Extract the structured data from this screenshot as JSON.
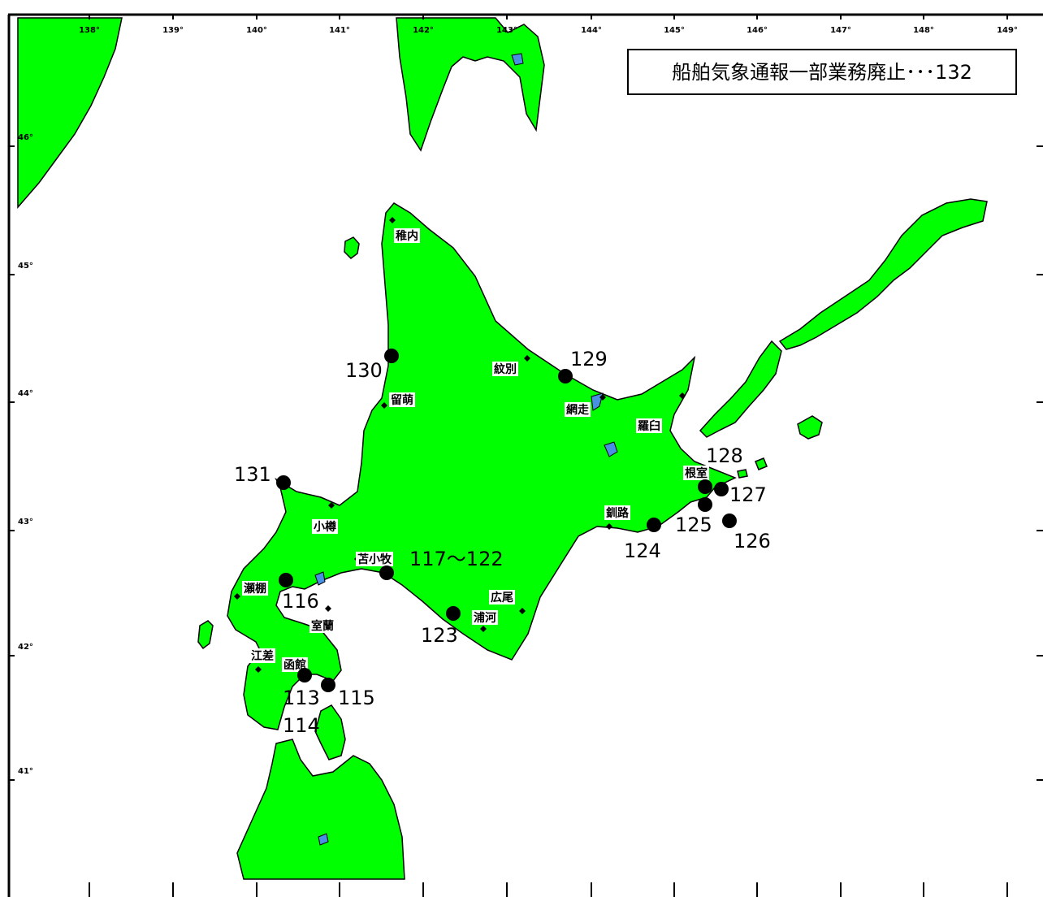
{
  "title": "船舶気象通報一部業務廃止･･･132",
  "colors": {
    "land": "#00FF00",
    "lake": "#4A90E2",
    "sea": "#FFFFFF",
    "marker": "#000000"
  },
  "longitude_labels": [
    "138°",
    "139°",
    "140°",
    "141°",
    "142°",
    "143°",
    "144°",
    "145°",
    "146°",
    "147°",
    "148°",
    "149°"
  ],
  "latitude_labels": [
    "46°",
    "45°",
    "44°",
    "43°",
    "42°",
    "41°"
  ],
  "ports": [
    {
      "name": "稚内"
    },
    {
      "name": "紋別"
    },
    {
      "name": "留萌"
    },
    {
      "name": "網走"
    },
    {
      "name": "羅臼"
    },
    {
      "name": "根室"
    },
    {
      "name": "釧路"
    },
    {
      "name": "小樽"
    },
    {
      "name": "苫小牧"
    },
    {
      "name": "広尾"
    },
    {
      "name": "浦河"
    },
    {
      "name": "瀬棚"
    },
    {
      "name": "室蘭"
    },
    {
      "name": "江差"
    },
    {
      "name": "函館"
    }
  ],
  "stations": [
    {
      "label": "129"
    },
    {
      "label": "130"
    },
    {
      "label": "131"
    },
    {
      "label": "128"
    },
    {
      "label": "127"
    },
    {
      "label": "125"
    },
    {
      "label": "126"
    },
    {
      "label": "124"
    },
    {
      "label": "117～122"
    },
    {
      "label": "116"
    },
    {
      "label": "123"
    },
    {
      "label": "113"
    },
    {
      "label": "114"
    },
    {
      "label": "115"
    }
  ]
}
